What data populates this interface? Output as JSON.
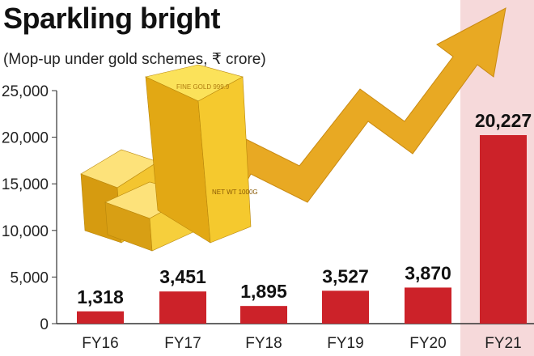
{
  "title": "Sparkling bright",
  "subtitle": "(Mop-up under gold schemes, ₹ crore)",
  "colors": {
    "bar": "#cc2229",
    "highlight": "#f6d9da",
    "gold": "#f2c230",
    "arrow": "#e8a923"
  },
  "image_text": {
    "bar_top": "FINE GOLD 999.9",
    "bar_side": "NET WT 1000G"
  },
  "chart_data": {
    "type": "bar",
    "title": "Sparkling bright",
    "subtitle": "(Mop-up under gold schemes, ₹ crore)",
    "xlabel": "",
    "ylabel": "",
    "categories": [
      "FY16",
      "FY17",
      "FY18",
      "FY19",
      "FY20",
      "FY21"
    ],
    "values": [
      1318,
      3451,
      1895,
      3527,
      3870,
      20227
    ],
    "value_labels": [
      "1,318",
      "3,451",
      "1,895",
      "3,527",
      "3,870",
      "20,227"
    ],
    "highlighted_category": "FY21",
    "ylim": [
      0,
      25000
    ],
    "yticks": [
      0,
      5000,
      10000,
      15000,
      20000,
      25000
    ],
    "ytick_labels": [
      "0",
      "5,000",
      "10,000",
      "15,000",
      "20,000",
      "25,000"
    ],
    "grid": false,
    "legend": "none"
  }
}
